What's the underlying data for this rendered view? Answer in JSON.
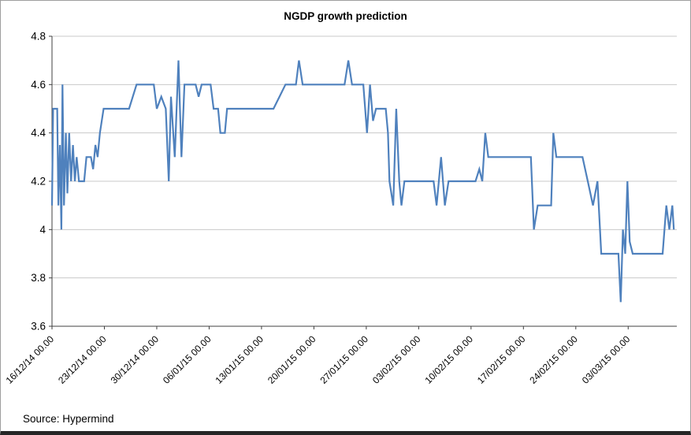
{
  "header": {
    "title": "NGDP growth prediction"
  },
  "footer": {
    "source": "Source: Hypermind"
  },
  "chart_data": {
    "type": "line",
    "title": "NGDP growth prediction",
    "xlabel": "",
    "ylabel": "",
    "legend": "none",
    "grid": "horizontal",
    "grid_color": "#c9c9c9",
    "axis_color": "#404040",
    "xlim": [
      0,
      83.5
    ],
    "ylim": [
      3.6,
      4.8
    ],
    "y_tick_values": [
      4.8,
      4.6,
      4.4,
      4.2,
      4.0,
      3.8,
      3.6
    ],
    "y_tick_labels": [
      "4.8",
      "4.6",
      "4.4",
      "4.2",
      "4",
      "3.8",
      "3.6"
    ],
    "x_tick_days": [
      0,
      7,
      14,
      21,
      28,
      35,
      42,
      49,
      56,
      63,
      70,
      77
    ],
    "x_tick_labels": [
      "16/12/14 00.00",
      "23/12/14 00.00",
      "30/12/14 00.00",
      "06/01/15 00.00",
      "13/01/15 00.00",
      "20/01/15 00.00",
      "27/01/15 00.00",
      "03/02/15 00.00",
      "10/02/15 00.00",
      "17/02/15 00.00",
      "24/02/15 00.00",
      "03/03/15 00.00"
    ],
    "series": [
      {
        "name": "NGDP growth prediction",
        "color": "#4F81BD",
        "points": [
          [
            0,
            4.1
          ],
          [
            0.15,
            4.5
          ],
          [
            0.7,
            4.5
          ],
          [
            0.85,
            4.1
          ],
          [
            1.05,
            4.35
          ],
          [
            1.25,
            4.0
          ],
          [
            1.4,
            4.6
          ],
          [
            1.6,
            4.1
          ],
          [
            1.85,
            4.4
          ],
          [
            2.05,
            4.15
          ],
          [
            2.3,
            4.4
          ],
          [
            2.55,
            4.2
          ],
          [
            2.8,
            4.35
          ],
          [
            3.05,
            4.2
          ],
          [
            3.3,
            4.3
          ],
          [
            3.6,
            4.2
          ],
          [
            4.3,
            4.2
          ],
          [
            4.6,
            4.3
          ],
          [
            5.2,
            4.3
          ],
          [
            5.5,
            4.25
          ],
          [
            5.8,
            4.35
          ],
          [
            6.1,
            4.3
          ],
          [
            6.4,
            4.4
          ],
          [
            6.9,
            4.5
          ],
          [
            10.3,
            4.5
          ],
          [
            11.3,
            4.6
          ],
          [
            13.6,
            4.6
          ],
          [
            14.0,
            4.5
          ],
          [
            14.6,
            4.55
          ],
          [
            15.2,
            4.5
          ],
          [
            15.6,
            4.2
          ],
          [
            15.9,
            4.55
          ],
          [
            16.4,
            4.3
          ],
          [
            16.9,
            4.7
          ],
          [
            17.3,
            4.3
          ],
          [
            17.7,
            4.6
          ],
          [
            19.2,
            4.6
          ],
          [
            19.6,
            4.55
          ],
          [
            20.0,
            4.6
          ],
          [
            21.2,
            4.6
          ],
          [
            21.6,
            4.5
          ],
          [
            22.2,
            4.5
          ],
          [
            22.5,
            4.4
          ],
          [
            23.1,
            4.4
          ],
          [
            23.4,
            4.5
          ],
          [
            28.6,
            4.5
          ],
          [
            29.6,
            4.5
          ],
          [
            30.4,
            4.55
          ],
          [
            31.2,
            4.6
          ],
          [
            32.6,
            4.6
          ],
          [
            33.0,
            4.7
          ],
          [
            33.5,
            4.6
          ],
          [
            39.1,
            4.6
          ],
          [
            39.6,
            4.7
          ],
          [
            40.1,
            4.6
          ],
          [
            41.6,
            4.6
          ],
          [
            42.1,
            4.4
          ],
          [
            42.5,
            4.6
          ],
          [
            42.9,
            4.45
          ],
          [
            43.3,
            4.5
          ],
          [
            44.6,
            4.5
          ],
          [
            44.9,
            4.4
          ],
          [
            45.1,
            4.2
          ],
          [
            45.6,
            4.1
          ],
          [
            46.0,
            4.5
          ],
          [
            46.4,
            4.2
          ],
          [
            46.7,
            4.1
          ],
          [
            47.1,
            4.2
          ],
          [
            51.0,
            4.2
          ],
          [
            51.4,
            4.1
          ],
          [
            52.0,
            4.3
          ],
          [
            52.5,
            4.1
          ],
          [
            53.0,
            4.2
          ],
          [
            56.6,
            4.2
          ],
          [
            57.1,
            4.25
          ],
          [
            57.5,
            4.2
          ],
          [
            57.9,
            4.4
          ],
          [
            58.3,
            4.3
          ],
          [
            64.0,
            4.3
          ],
          [
            64.4,
            4.0
          ],
          [
            64.9,
            4.1
          ],
          [
            66.7,
            4.1
          ],
          [
            67.0,
            4.4
          ],
          [
            67.4,
            4.3
          ],
          [
            70.9,
            4.3
          ],
          [
            71.6,
            4.2
          ],
          [
            72.3,
            4.1
          ],
          [
            72.9,
            4.2
          ],
          [
            73.4,
            3.9
          ],
          [
            75.7,
            3.9
          ],
          [
            76.0,
            3.7
          ],
          [
            76.3,
            4.0
          ],
          [
            76.6,
            3.9
          ],
          [
            76.9,
            4.2
          ],
          [
            77.2,
            3.95
          ],
          [
            77.6,
            3.9
          ],
          [
            81.6,
            3.9
          ],
          [
            82.1,
            4.1
          ],
          [
            82.5,
            4.0
          ],
          [
            82.9,
            4.1
          ],
          [
            83.1,
            4.0
          ]
        ]
      }
    ]
  }
}
